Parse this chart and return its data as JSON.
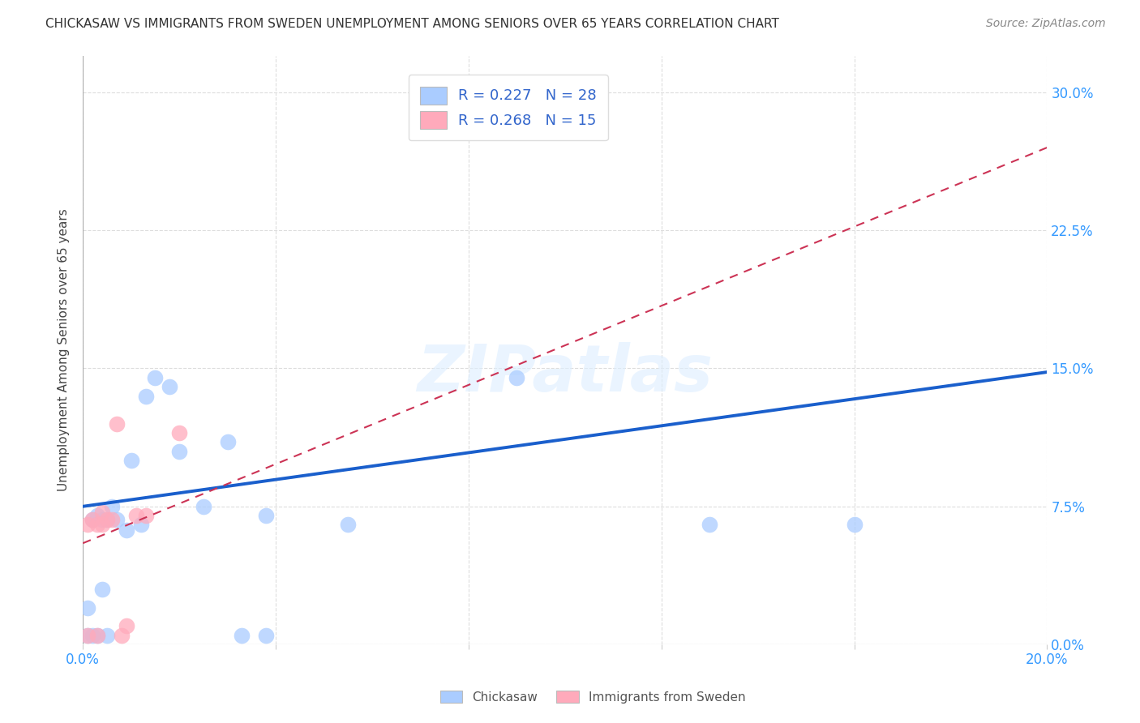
{
  "title": "CHICKASAW VS IMMIGRANTS FROM SWEDEN UNEMPLOYMENT AMONG SENIORS OVER 65 YEARS CORRELATION CHART",
  "source": "Source: ZipAtlas.com",
  "ylabel": "Unemployment Among Seniors over 65 years",
  "xlim": [
    0.0,
    0.2
  ],
  "ylim": [
    0.0,
    0.32
  ],
  "yticks": [
    0.0,
    0.075,
    0.15,
    0.225,
    0.3
  ],
  "ytick_labels": [
    "0.0%",
    "7.5%",
    "15.0%",
    "22.5%",
    "30.0%"
  ],
  "xticks": [
    0.0,
    0.04,
    0.08,
    0.12,
    0.16,
    0.2
  ],
  "xtick_labels": [
    "0.0%",
    "",
    "",
    "",
    "",
    "20.0%"
  ],
  "legend_labels": [
    "R = 0.227   N = 28",
    "R = 0.268   N = 15"
  ],
  "chickasaw_color": "#aaccff",
  "sweden_color": "#ffaabb",
  "chickasaw_line_color": "#1a5fcc",
  "sweden_line_color": "#cc3355",
  "watermark": "ZIPatlas",
  "chickasaw_x": [
    0.001,
    0.001,
    0.002,
    0.002,
    0.003,
    0.003,
    0.004,
    0.004,
    0.005,
    0.005,
    0.006,
    0.007,
    0.009,
    0.01,
    0.012,
    0.013,
    0.015,
    0.018,
    0.02,
    0.025,
    0.03,
    0.033,
    0.038,
    0.038,
    0.055,
    0.09,
    0.13,
    0.16
  ],
  "chickasaw_y": [
    0.005,
    0.02,
    0.005,
    0.068,
    0.005,
    0.07,
    0.03,
    0.068,
    0.005,
    0.068,
    0.075,
    0.068,
    0.062,
    0.1,
    0.065,
    0.135,
    0.145,
    0.14,
    0.105,
    0.075,
    0.11,
    0.005,
    0.005,
    0.07,
    0.065,
    0.145,
    0.065,
    0.065
  ],
  "sweden_x": [
    0.001,
    0.001,
    0.002,
    0.003,
    0.003,
    0.004,
    0.004,
    0.005,
    0.006,
    0.007,
    0.008,
    0.009,
    0.011,
    0.013,
    0.02
  ],
  "sweden_y": [
    0.005,
    0.065,
    0.068,
    0.005,
    0.065,
    0.065,
    0.072,
    0.068,
    0.068,
    0.12,
    0.005,
    0.01,
    0.07,
    0.07,
    0.115
  ]
}
